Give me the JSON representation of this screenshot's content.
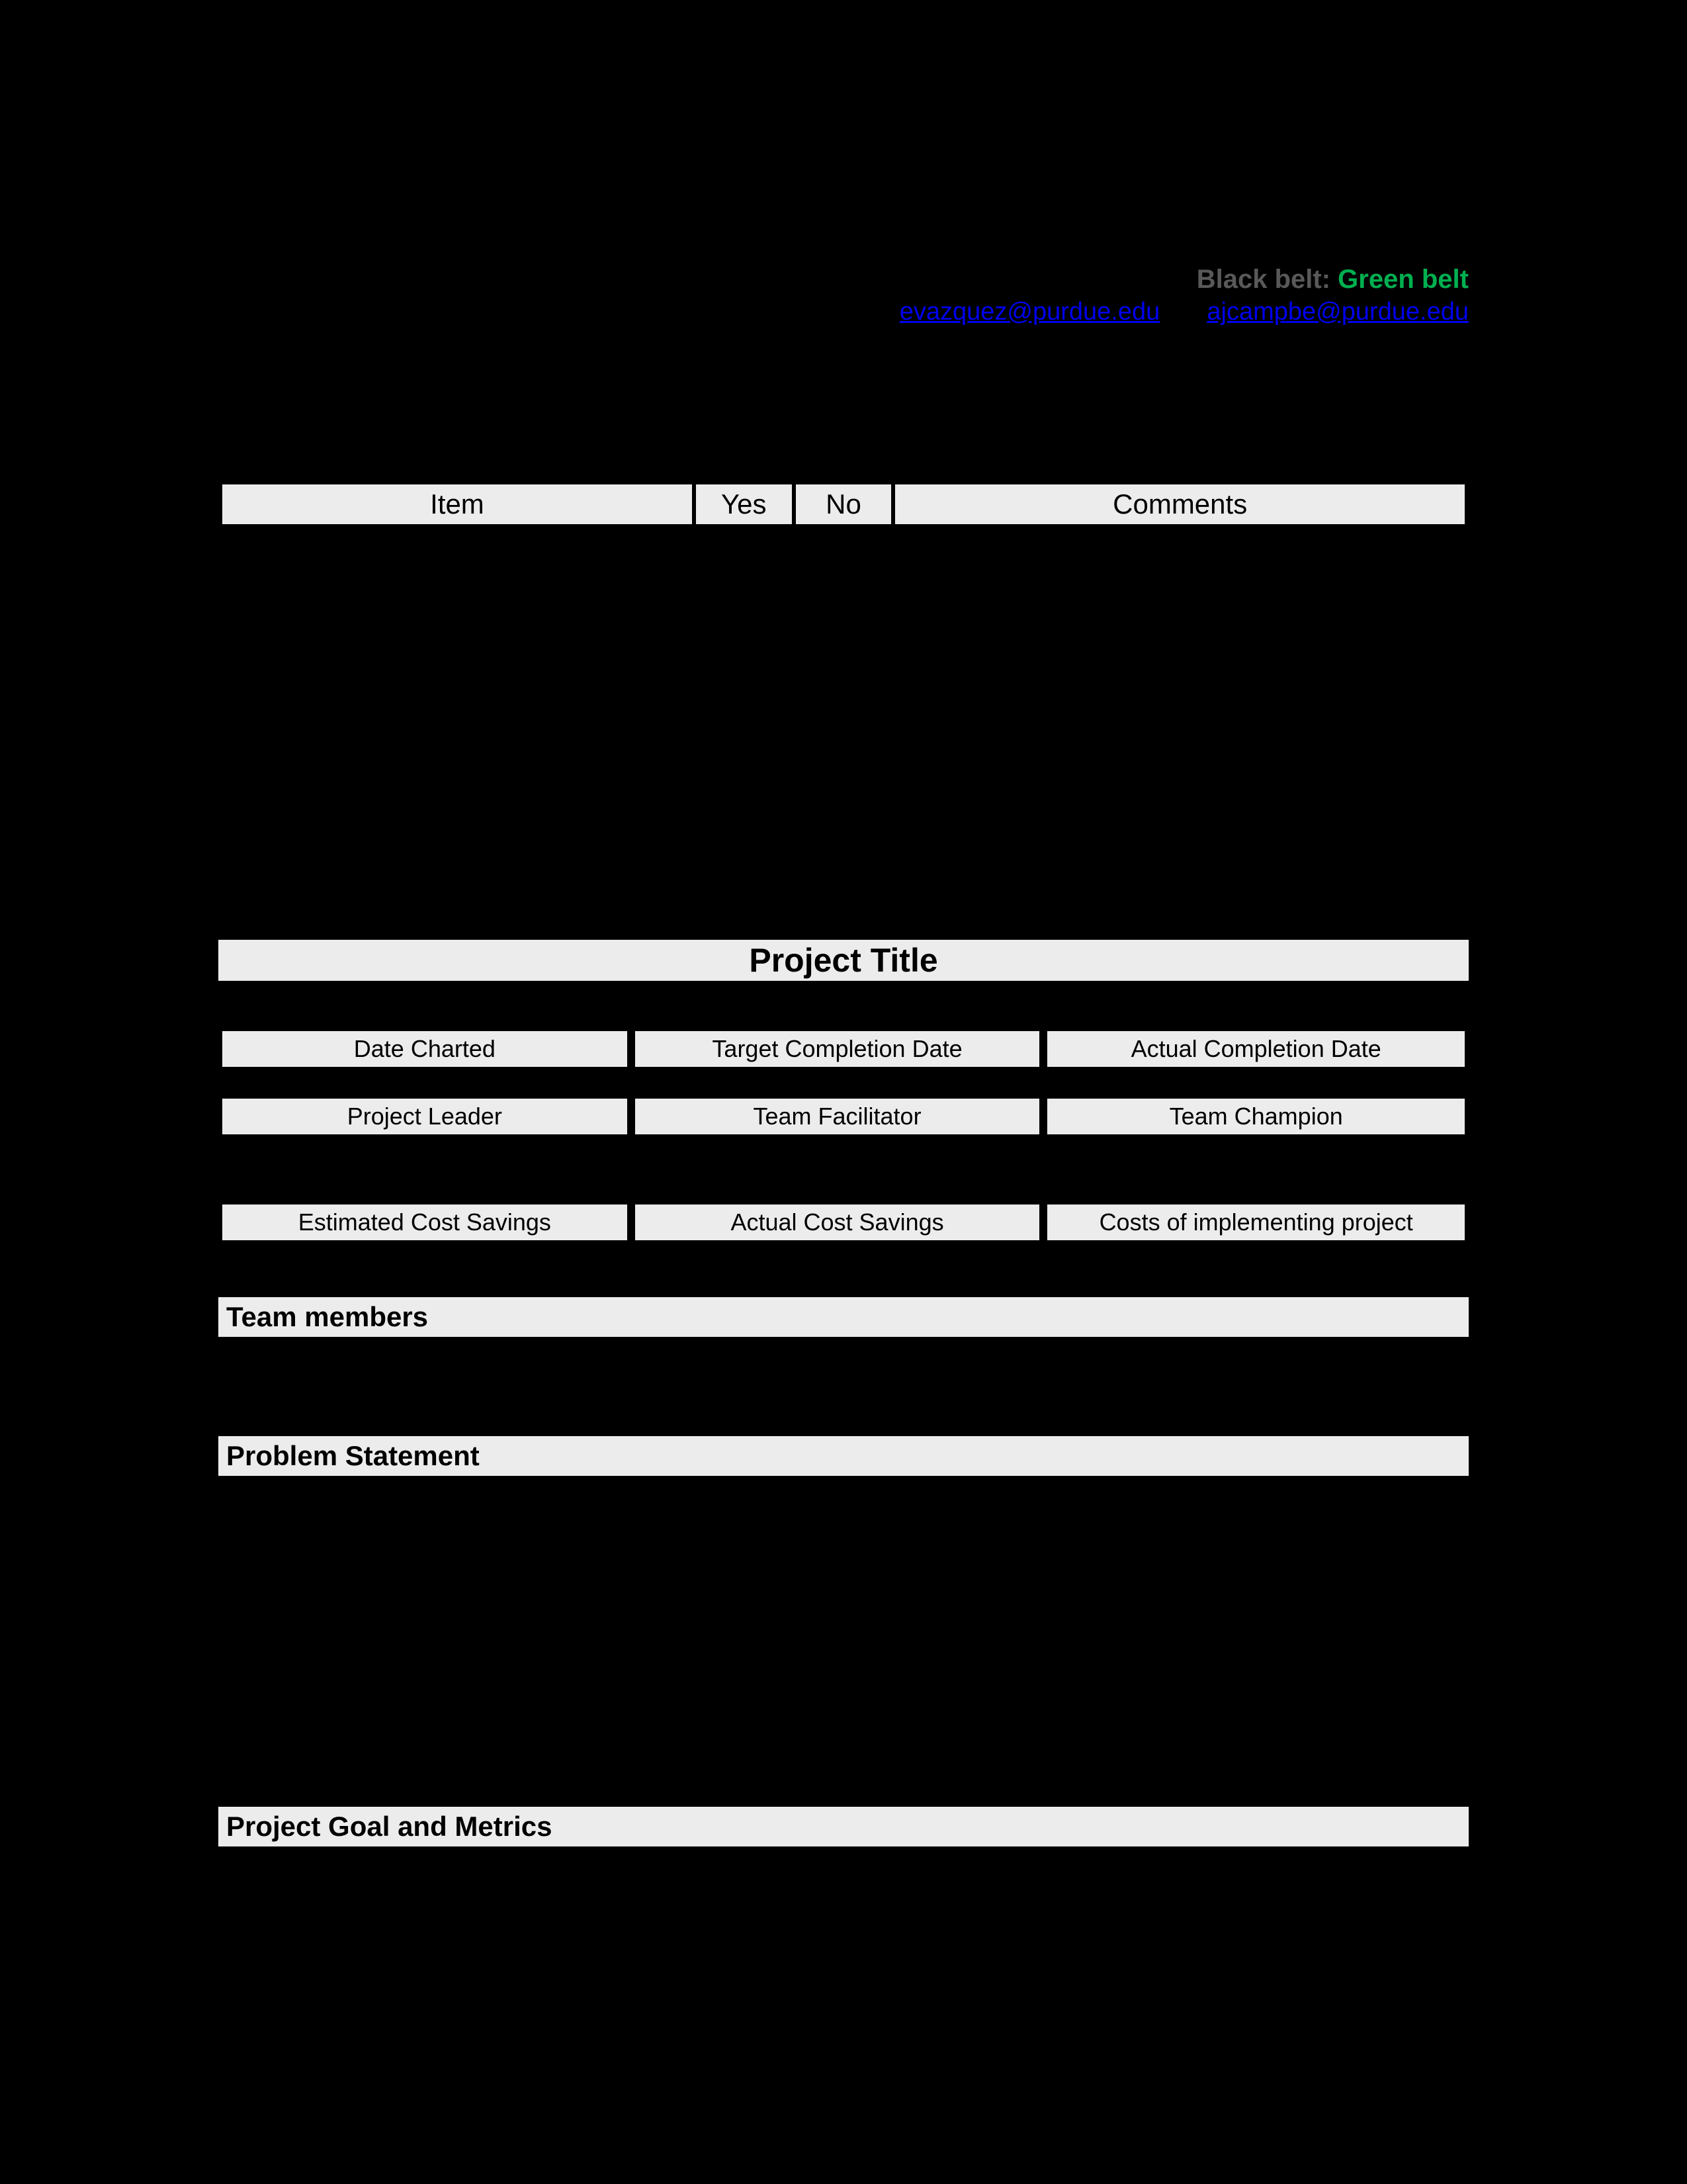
{
  "header": {
    "black_belt": "Black belt",
    "separator": ":",
    "green_belt": "Green belt",
    "email1": "evazquez@purdue.edu",
    "email2": "ajcampbe@purdue.edu"
  },
  "checklist": {
    "columns": {
      "item": "Item",
      "yes": "Yes",
      "no": "No",
      "comments": "Comments"
    },
    "header_bg": "#ececec",
    "text_color": "#000000",
    "border_color": "#000000"
  },
  "project_title_bar": "Project Title",
  "dates_row": {
    "c1": "Date Charted",
    "c2": "Target Completion Date",
    "c3": "Actual Completion Date"
  },
  "people_row": {
    "c1": "Project Leader",
    "c2": "Team Facilitator",
    "c3": "Team Champion"
  },
  "costs_row": {
    "c1": "Estimated Cost Savings",
    "c2": "Actual Cost Savings",
    "c3": "Costs of implementing project"
  },
  "sections": {
    "team_members": "Team members",
    "problem_statement": "Problem Statement",
    "project_goal": "Project Goal and Metrics"
  },
  "colors": {
    "page_bg": "#000000",
    "bar_bg": "#ececec",
    "black_belt": "#595959",
    "green_belt": "#00b050",
    "link": "#0000ee"
  },
  "fonts": {
    "title_size_pt": 25,
    "header_size_pt": 20,
    "cell_size_pt": 18,
    "section_size_pt": 21
  }
}
